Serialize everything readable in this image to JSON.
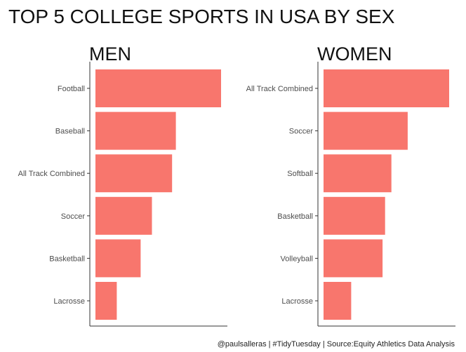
{
  "title": "TOP 5 COLLEGE SPORTS IN USA BY SEX",
  "caption": "@paulsalleras | #TidyTuesday | Source:Equity Athletics Data Analysis",
  "bar_color": "#F8766D",
  "chart_data": [
    {
      "type": "bar",
      "orientation": "horizontal",
      "title": "MEN",
      "categories": [
        "Football",
        "Baseball",
        "All Track Combined",
        "Soccer",
        "Basketball",
        "Lacrosse"
      ],
      "values": [
        100,
        64,
        61,
        45,
        36,
        17
      ],
      "xlim": [
        0,
        100
      ],
      "grid": false
    },
    {
      "type": "bar",
      "orientation": "horizontal",
      "title": "WOMEN",
      "categories": [
        "All Track Combined",
        "Soccer",
        "Softball",
        "Basketball",
        "Volleyball",
        "Lacrosse"
      ],
      "values": [
        100,
        67,
        54,
        49,
        47,
        22
      ],
      "xlim": [
        0,
        100
      ],
      "grid": false
    }
  ]
}
